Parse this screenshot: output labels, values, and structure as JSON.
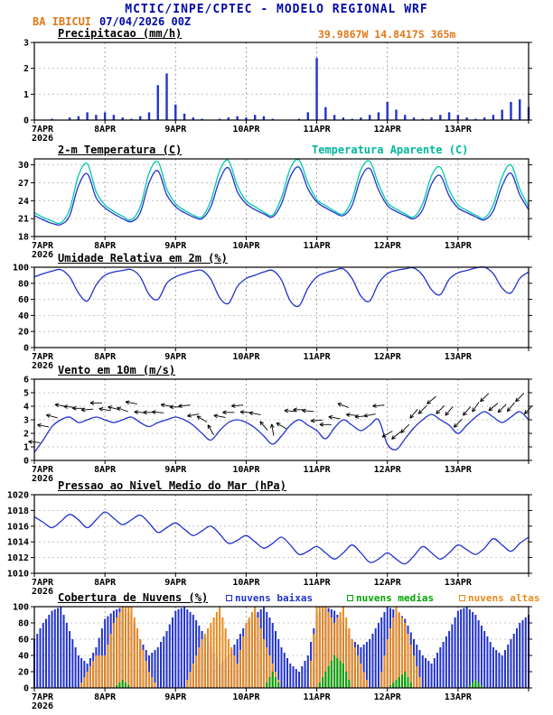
{
  "header": {
    "title": "MCTIC/INPE/CPTEC - MODELO REGIONAL WRF",
    "station": "BA IBICUI",
    "run": "07/04/2026 00Z",
    "coords": "39.9867W 14.8417S 365m"
  },
  "colors": {
    "line_blue": "#2233cc",
    "apparent_cyan": "#00b89c",
    "orange": "#e8891a",
    "green": "#00a400",
    "title_navy": "#0008a8",
    "label_orange": "#e07818"
  },
  "chart_data": {
    "type": "line",
    "note": "meteogram with 6 stacked panels, 3-hourly values from 07APR2026 00Z to 14APR2026 00Z",
    "x_hours_step": 3,
    "x_range_hours": [
      0,
      168
    ],
    "x_ticks": [
      "7APR",
      "8APR",
      "9APR",
      "10APR",
      "11APR",
      "12APR",
      "13APR"
    ],
    "x_year": "2026",
    "panels": [
      {
        "id": "precipitation",
        "title": "Precipitacao (mm/h)",
        "type": "bar",
        "ylim": [
          0,
          3
        ],
        "yticks": [
          "0",
          "1",
          "2",
          "3"
        ],
        "bar_color": "#2233cc",
        "values": [
          0,
          0,
          0.05,
          0,
          0.1,
          0.15,
          0.3,
          0.2,
          0.3,
          0.2,
          0.1,
          0.05,
          0.15,
          0.3,
          1.35,
          1.8,
          0.6,
          0.25,
          0.1,
          0.05,
          0,
          0.05,
          0.1,
          0.15,
          0.1,
          0.2,
          0.15,
          0.05,
          0,
          0,
          0.05,
          0.3,
          2.4,
          0.5,
          0.2,
          0.1,
          0.05,
          0.1,
          0.2,
          0.3,
          0.7,
          0.4,
          0.2,
          0.1,
          0.05,
          0.1,
          0.2,
          0.3,
          0.2,
          0.1,
          0.05,
          0.1,
          0.2,
          0.4,
          0.7,
          0.8,
          0.5
        ]
      },
      {
        "id": "temperature",
        "title": "2-m Temperatura (C)",
        "right_label": "Temperatura Aparente (C)",
        "type": "line",
        "ylim": [
          18,
          31
        ],
        "yticks": [
          "18",
          "21",
          "24",
          "27",
          "30"
        ],
        "series": [
          {
            "name": "2-m Temperatura (C)",
            "color": "#2233cc",
            "values": [
              21.5,
              20.8,
              20.2,
              20,
              21.5,
              26.5,
              28.5,
              24.5,
              22.8,
              21.8,
              21,
              20.5,
              22,
              27,
              29,
              25,
              23,
              22,
              21.3,
              21,
              23,
              27.5,
              29.5,
              25.5,
              23.5,
              22.5,
              21.8,
              21.3,
              23.5,
              28,
              29.6,
              26,
              23.8,
              22.8,
              22,
              21.5,
              23.2,
              27.8,
              29.4,
              25.8,
              23.2,
              22.2,
              21.5,
              21,
              22.5,
              26.8,
              28.2,
              24.8,
              22.8,
              22,
              21.3,
              20.8,
              22.3,
              26.5,
              28.6,
              25,
              22.5
            ]
          },
          {
            "name": "Temperatura Aparente (C)",
            "color": "#00c9a9",
            "values": [
              22,
              21.2,
              20.6,
              20.3,
              22.5,
              28.2,
              30.2,
              25.5,
              23.3,
              22.2,
              21.4,
              20.8,
              23,
              28.6,
              30.5,
              26,
              23.5,
              22.4,
              21.6,
              21.3,
              24,
              29,
              30.7,
              26.5,
              24,
              23,
              22.1,
              21.6,
              24.5,
              29.4,
              30.8,
              27,
              24.2,
              23.2,
              22.3,
              21.8,
              24.2,
              29.2,
              30.6,
              26.8,
              23.7,
              22.6,
              21.8,
              21.3,
              23.5,
              28.2,
              29.6,
              25.8,
              23.3,
              22.4,
              21.6,
              21.1,
              23.3,
              28,
              30,
              26,
              23
            ]
          }
        ]
      },
      {
        "id": "humidity",
        "title": "Umidade Relativa em 2m (%)",
        "type": "line",
        "ylim": [
          0,
          100
        ],
        "yticks": [
          "0",
          "20",
          "40",
          "60",
          "80",
          "100"
        ],
        "series": [
          {
            "name": "Umidade Relativa",
            "color": "#2233cc",
            "values": [
              88,
              92,
              95,
              97,
              88,
              68,
              58,
              78,
              90,
              94,
              96,
              97,
              88,
              66,
              60,
              80,
              88,
              92,
              95,
              96,
              85,
              62,
              55,
              76,
              86,
              90,
              94,
              96,
              84,
              58,
              52,
              74,
              88,
              93,
              96,
              98,
              86,
              64,
              58,
              80,
              92,
              96,
              98,
              99,
              90,
              72,
              66,
              85,
              93,
              96,
              99,
              100,
              92,
              74,
              68,
              86,
              94
            ]
          }
        ]
      },
      {
        "id": "wind",
        "title": "Vento em 10m (m/s)",
        "type": "line+arrows",
        "ylim": [
          0,
          6
        ],
        "yticks": [
          "0",
          "1",
          "2",
          "3",
          "4",
          "5",
          "6"
        ],
        "arrow_color": "#000000",
        "series": [
          {
            "name": "Velocidade do Vento",
            "color": "#2233cc",
            "values": [
              0.6,
              1.5,
              2.5,
              3,
              3.2,
              2.8,
              3,
              3.2,
              3,
              2.8,
              3,
              3.2,
              2.8,
              2.5,
              2.8,
              3,
              3.2,
              3,
              2.6,
              2,
              1.5,
              2.2,
              2.8,
              3,
              2.8,
              2.4,
              1.8,
              1.2,
              1.8,
              2.6,
              3,
              2.6,
              2.2,
              1.6,
              2.4,
              3,
              2.6,
              2.2,
              2.6,
              3,
              1.2,
              0.8,
              1.6,
              2.4,
              3,
              3.4,
              3,
              2.6,
              2,
              2.6,
              3.2,
              3.6,
              3.2,
              2.8,
              3.2,
              3.6,
              3
            ]
          }
        ],
        "directions_deg": [
          95,
          100,
          105,
          100,
          95,
          90,
          85,
          90,
          100,
          105,
          110,
          100,
          95,
          90,
          95,
          100,
          90,
          85,
          80,
          120,
          150,
          100,
          90,
          85,
          95,
          100,
          140,
          170,
          120,
          95,
          90,
          95,
          85,
          90,
          100,
          110,
          95,
          85,
          80,
          85,
          60,
          50,
          45,
          40,
          45,
          50,
          45,
          40,
          45,
          40,
          35,
          45,
          50,
          45,
          40,
          45,
          45
        ]
      },
      {
        "id": "pressure",
        "title": "Pressao ao Nivel Medio do Mar (hPa)",
        "type": "line",
        "ylim": [
          1010,
          1020
        ],
        "yticks": [
          "1010",
          "1012",
          "1014",
          "1016",
          "1018",
          "1020"
        ],
        "series": [
          {
            "name": "Pressao",
            "color": "#2233cc",
            "values": [
              1017.2,
              1016.5,
              1015.8,
              1016.6,
              1017.5,
              1016.8,
              1015.8,
              1016.8,
              1017.8,
              1017,
              1016.2,
              1016.8,
              1017.4,
              1016.4,
              1015.2,
              1015.8,
              1016.4,
              1015.6,
              1014.8,
              1015.4,
              1016,
              1015,
              1013.8,
              1014.2,
              1014.8,
              1014,
              1013.2,
              1013.8,
              1014.6,
              1013.6,
              1012.4,
              1012.8,
              1013.4,
              1012.6,
              1011.8,
              1012.6,
              1013.6,
              1012.6,
              1011.4,
              1011.8,
              1012.6,
              1011.8,
              1011.2,
              1012.2,
              1013.4,
              1012.6,
              1011.8,
              1012.6,
              1013.6,
              1013,
              1012.4,
              1013.2,
              1014.4,
              1013.6,
              1012.8,
              1013.8,
              1014.6
            ]
          }
        ]
      },
      {
        "id": "clouds",
        "title": "Cobertura de Nuvens (%)",
        "type": "multi-bar",
        "ylim": [
          0,
          100
        ],
        "yticks": [
          "0",
          "20",
          "40",
          "60",
          "80",
          "100"
        ],
        "legend": [
          {
            "label": "nuvens baixas",
            "color": "#2233cc"
          },
          {
            "label": "nuvens medias",
            "color": "#00a400"
          },
          {
            "label": "nuvens altas",
            "color": "#e8891a"
          }
        ],
        "series": [
          {
            "name": "nuvens baixas",
            "color": "#2233cc",
            "values": [
              60,
              80,
              95,
              100,
              70,
              40,
              30,
              50,
              85,
              95,
              100,
              90,
              60,
              40,
              50,
              70,
              95,
              100,
              90,
              70,
              50,
              30,
              40,
              60,
              80,
              90,
              100,
              80,
              50,
              30,
              20,
              40,
              90,
              100,
              95,
              80,
              60,
              50,
              60,
              80,
              100,
              95,
              85,
              60,
              40,
              30,
              50,
              70,
              95,
              100,
              90,
              70,
              50,
              40,
              60,
              80,
              90
            ]
          },
          {
            "name": "nuvens medias",
            "color": "#00a400",
            "values": [
              0,
              0,
              0,
              0,
              0,
              0,
              0,
              0,
              0,
              0,
              10,
              0,
              0,
              0,
              0,
              0,
              0,
              0,
              0,
              0,
              0,
              0,
              0,
              0,
              0,
              0,
              0,
              20,
              0,
              0,
              0,
              0,
              0,
              20,
              40,
              30,
              0,
              0,
              0,
              0,
              0,
              10,
              20,
              0,
              0,
              0,
              0,
              0,
              0,
              0,
              10,
              0,
              0,
              0,
              0,
              0,
              0
            ]
          },
          {
            "name": "nuvens altas",
            "color": "#e8891a",
            "values": [
              0,
              0,
              0,
              0,
              0,
              0,
              20,
              40,
              40,
              80,
              100,
              100,
              60,
              20,
              0,
              0,
              0,
              0,
              30,
              60,
              80,
              100,
              60,
              30,
              80,
              100,
              60,
              30,
              0,
              0,
              0,
              0,
              100,
              100,
              80,
              100,
              60,
              30,
              0,
              0,
              60,
              100,
              80,
              40,
              0,
              0,
              0,
              0,
              0,
              0,
              0,
              0,
              0,
              0,
              0,
              0,
              0
            ]
          }
        ]
      }
    ]
  }
}
